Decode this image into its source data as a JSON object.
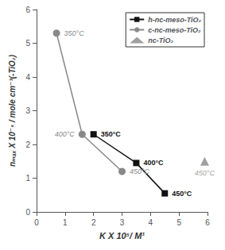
{
  "chart_data": {
    "type": "line",
    "xlabel": "K X 10⁵/ M¹",
    "ylabel": "nₘₐₓ X 10⁻⁵ / mole cm⁻³(-TiO₂)",
    "xlim": [
      0,
      6
    ],
    "ylim": [
      0,
      6
    ],
    "xticks": [
      0,
      1,
      2,
      3,
      4,
      5,
      6
    ],
    "yticks": [
      0,
      1,
      2,
      3,
      4,
      5,
      6
    ],
    "grid": false,
    "legend": "upper right",
    "series": [
      {
        "name": "h-nc-meso-TiO₂",
        "type": "line",
        "color": "#111111",
        "marker": "square",
        "line_style": "solid",
        "x": [
          2.0,
          3.5,
          4.5
        ],
        "values": [
          2.3,
          1.45,
          0.55
        ],
        "labels": [
          "350°C",
          "400°C",
          "450°C"
        ]
      },
      {
        "name": "c-nc-meso-TiO₂",
        "type": "line",
        "color": "#888888",
        "marker": "circle",
        "line_style": "solid",
        "x": [
          0.7,
          1.6,
          3.0
        ],
        "values": [
          5.3,
          2.3,
          1.2
        ],
        "labels": [
          "350°C",
          "400°C",
          "450°C"
        ]
      },
      {
        "name": "nc-TiO₂",
        "type": "scatter",
        "color": "#888888",
        "marker": "triangle",
        "x": [
          5.9
        ],
        "values": [
          1.5
        ],
        "labels": [
          "450°C"
        ]
      }
    ]
  }
}
